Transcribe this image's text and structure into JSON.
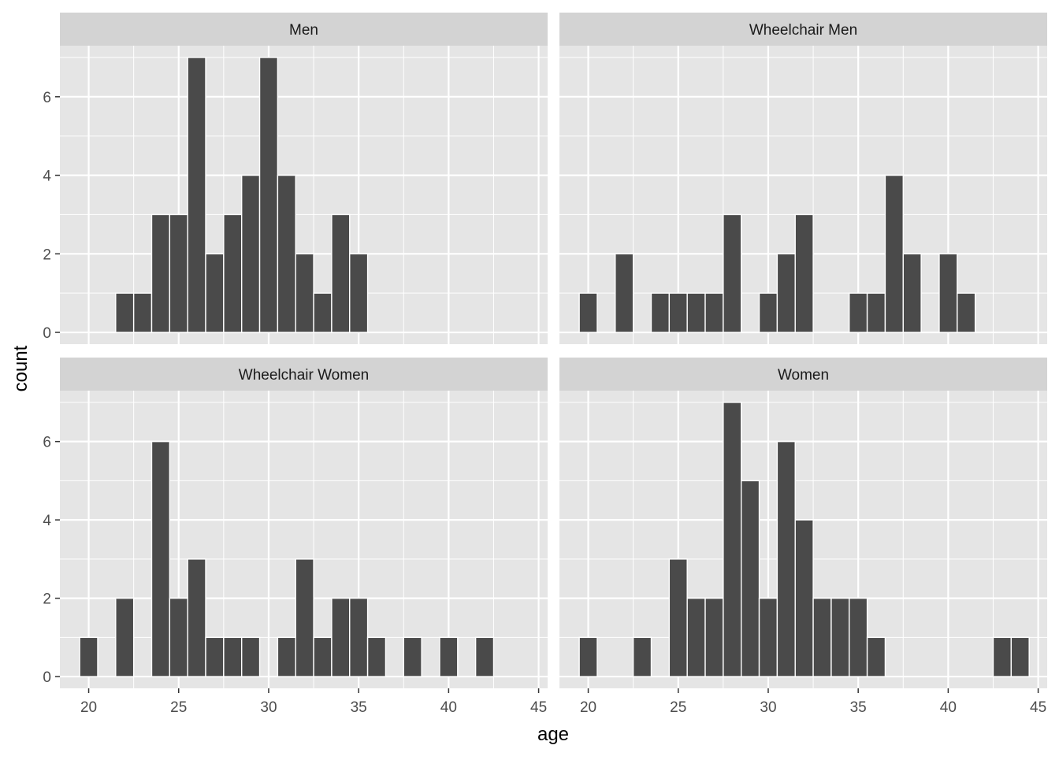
{
  "chart_data": {
    "type": "bar",
    "subtype": "faceted-histogram",
    "xlabel": "age",
    "ylabel": "count",
    "xlim": [
      18.4,
      45.5
    ],
    "ylim": [
      -0.3,
      7.3
    ],
    "x_ticks": [
      20,
      25,
      30,
      35,
      40,
      45
    ],
    "y_ticks": [
      0,
      2,
      4,
      6
    ],
    "bin_width": 1,
    "colors": {
      "bar": "#4a4a4a",
      "panel": "#e5e5e5",
      "strip": "#d3d3d3",
      "grid": "#ffffff"
    },
    "grid": true,
    "layout": "2x2",
    "facets": [
      {
        "name": "Men",
        "bins": [
          {
            "x": 22,
            "count": 1
          },
          {
            "x": 23,
            "count": 1
          },
          {
            "x": 24,
            "count": 3
          },
          {
            "x": 25,
            "count": 3
          },
          {
            "x": 26,
            "count": 7
          },
          {
            "x": 27,
            "count": 2
          },
          {
            "x": 28,
            "count": 3
          },
          {
            "x": 29,
            "count": 4
          },
          {
            "x": 30,
            "count": 7
          },
          {
            "x": 31,
            "count": 4
          },
          {
            "x": 32,
            "count": 2
          },
          {
            "x": 33,
            "count": 1
          },
          {
            "x": 34,
            "count": 3
          },
          {
            "x": 35,
            "count": 2
          }
        ]
      },
      {
        "name": "Wheelchair Men",
        "bins": [
          {
            "x": 20,
            "count": 1
          },
          {
            "x": 22,
            "count": 2
          },
          {
            "x": 24,
            "count": 1
          },
          {
            "x": 25,
            "count": 1
          },
          {
            "x": 26,
            "count": 1
          },
          {
            "x": 27,
            "count": 1
          },
          {
            "x": 28,
            "count": 3
          },
          {
            "x": 30,
            "count": 1
          },
          {
            "x": 31,
            "count": 2
          },
          {
            "x": 32,
            "count": 3
          },
          {
            "x": 35,
            "count": 1
          },
          {
            "x": 36,
            "count": 1
          },
          {
            "x": 37,
            "count": 4
          },
          {
            "x": 38,
            "count": 2
          },
          {
            "x": 40,
            "count": 2
          },
          {
            "x": 41,
            "count": 1
          }
        ]
      },
      {
        "name": "Wheelchair Women",
        "bins": [
          {
            "x": 20,
            "count": 1
          },
          {
            "x": 22,
            "count": 2
          },
          {
            "x": 24,
            "count": 6
          },
          {
            "x": 25,
            "count": 2
          },
          {
            "x": 26,
            "count": 3
          },
          {
            "x": 27,
            "count": 1
          },
          {
            "x": 28,
            "count": 1
          },
          {
            "x": 29,
            "count": 1
          },
          {
            "x": 31,
            "count": 1
          },
          {
            "x": 32,
            "count": 3
          },
          {
            "x": 33,
            "count": 1
          },
          {
            "x": 34,
            "count": 2
          },
          {
            "x": 35,
            "count": 2
          },
          {
            "x": 36,
            "count": 1
          },
          {
            "x": 38,
            "count": 1
          },
          {
            "x": 40,
            "count": 1
          },
          {
            "x": 42,
            "count": 1
          }
        ]
      },
      {
        "name": "Women",
        "bins": [
          {
            "x": 20,
            "count": 1
          },
          {
            "x": 23,
            "count": 1
          },
          {
            "x": 25,
            "count": 3
          },
          {
            "x": 26,
            "count": 2
          },
          {
            "x": 27,
            "count": 2
          },
          {
            "x": 28,
            "count": 7
          },
          {
            "x": 29,
            "count": 5
          },
          {
            "x": 30,
            "count": 2
          },
          {
            "x": 31,
            "count": 6
          },
          {
            "x": 32,
            "count": 4
          },
          {
            "x": 33,
            "count": 2
          },
          {
            "x": 34,
            "count": 2
          },
          {
            "x": 35,
            "count": 2
          },
          {
            "x": 36,
            "count": 1
          },
          {
            "x": 43,
            "count": 1
          },
          {
            "x": 44,
            "count": 1
          }
        ]
      }
    ]
  }
}
